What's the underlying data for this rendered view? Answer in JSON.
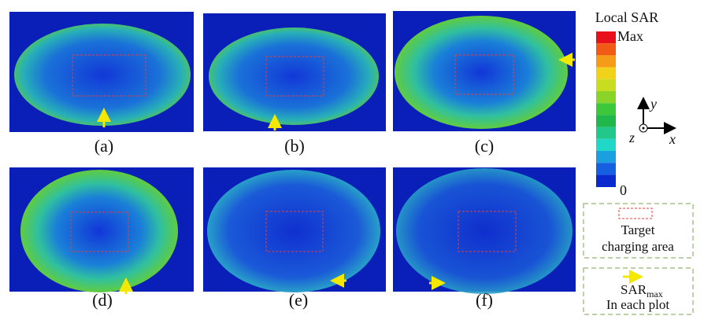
{
  "panels": [
    {
      "label": "(a)"
    },
    {
      "label": "(b)"
    },
    {
      "label": "(c)"
    },
    {
      "label": "(d)"
    },
    {
      "label": "(e)"
    },
    {
      "label": "(f)"
    }
  ],
  "colorbar": {
    "title": "Local SAR",
    "max": "Max",
    "min": "0"
  },
  "axes": {
    "y": "y",
    "x": "x",
    "z": "z"
  },
  "legend": {
    "target": [
      "Target",
      "charging area"
    ],
    "sar": {
      "name": "SAR",
      "subscript": "max",
      "note": "In each plot"
    }
  }
}
